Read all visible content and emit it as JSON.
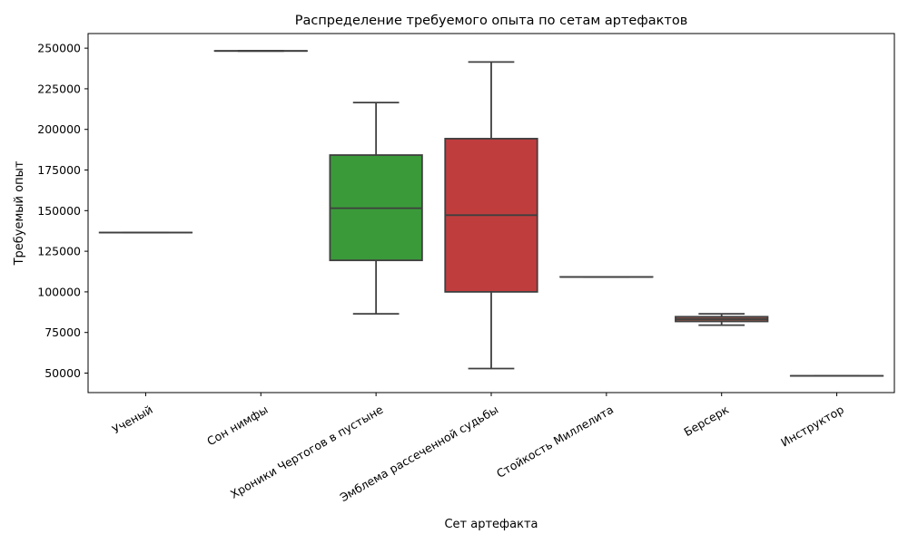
{
  "chart_data": {
    "type": "box",
    "title": "Распределение требуемого опыта по сетам артефактов",
    "xlabel": "Сет артефакта",
    "ylabel": "Требуемый опыт",
    "ylim": [
      38000,
      259000
    ],
    "yticks": [
      50000,
      75000,
      100000,
      125000,
      150000,
      175000,
      200000,
      225000,
      250000
    ],
    "yticklabels": [
      "50000",
      "75000",
      "100000",
      "125000",
      "150000",
      "175000",
      "200000",
      "225000",
      "250000"
    ],
    "grid": false,
    "series": [
      {
        "category": "Ученый",
        "min": 136500,
        "q1": 136500,
        "median": 136500,
        "q3": 136500,
        "max": 136500,
        "color": "#1f77b4"
      },
      {
        "category": "Сон нимфы",
        "min": 248300,
        "q1": 248300,
        "median": 248300,
        "q3": 248300,
        "max": 248300,
        "color": "#ff7f0e"
      },
      {
        "category": "Хроники Чертогов в пустыне",
        "min": 86500,
        "q1": 119400,
        "median": 151500,
        "q3": 184200,
        "max": 216500,
        "color": "#3a9a3a"
      },
      {
        "category": "Эмблема рассеченной судьбы",
        "min": 52800,
        "q1": 100000,
        "median": 147200,
        "q3": 194300,
        "max": 241500,
        "color": "#c03d3e"
      },
      {
        "category": "Стойкость Миллелита",
        "min": 109200,
        "q1": 109200,
        "median": 109200,
        "q3": 109200,
        "max": 109200,
        "color": "#9467bd"
      },
      {
        "category": "Берсерк",
        "min": 79500,
        "q1": 81800,
        "median": 83200,
        "q3": 84700,
        "max": 86500,
        "color": "#8c564b"
      },
      {
        "category": "Инструктор",
        "min": 48300,
        "q1": 48300,
        "median": 48300,
        "q3": 48300,
        "max": 48300,
        "color": "#e377c2"
      }
    ]
  }
}
